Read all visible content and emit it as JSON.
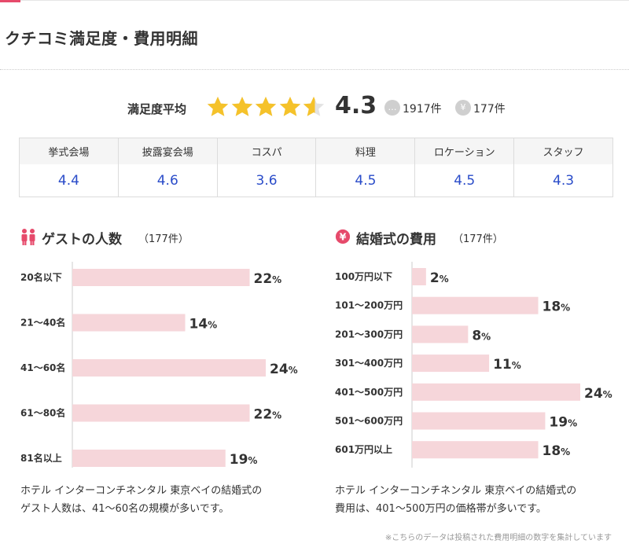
{
  "section_title": "クチコミ満足度・費用明細",
  "summary": {
    "label": "満足度平均",
    "score": "4.3",
    "rating": 4.3,
    "reviews_count": "1917件",
    "cost_count": "177件",
    "review_icon": "speech-bubble-icon",
    "cost_icon": "yen-icon",
    "star_color": "#f5c22a",
    "star_empty_color": "#e3e3e3"
  },
  "scores": [
    {
      "label": "挙式会場",
      "value": "4.4"
    },
    {
      "label": "披露宴会場",
      "value": "4.6"
    },
    {
      "label": "コスパ",
      "value": "3.6"
    },
    {
      "label": "料理",
      "value": "4.5"
    },
    {
      "label": "ロケーション",
      "value": "4.5"
    },
    {
      "label": "スタッフ",
      "value": "4.3"
    }
  ],
  "guest_chart": {
    "title": "ゲストの人数",
    "count": "（177件）",
    "icon": "people-icon",
    "note_lines": [
      "ホテル インターコンチネンタル 東京ベイの結婚式の",
      "ゲスト人数は、41～60名の規模が多いです。"
    ]
  },
  "cost_chart": {
    "title": "結婚式の費用",
    "count": "（177件）",
    "icon": "yen-circle-icon",
    "note_lines": [
      "ホテル インターコンチネンタル 東京ベイの結婚式の",
      "費用は、401～500万円の価格帯が多いです。"
    ]
  },
  "footnote": "※こちらのデータは投稿された費用明細の数字を集計しています",
  "colors": {
    "accent": "#e64a6b",
    "bar": "#f6d6da",
    "link_blue": "#2a4cc9"
  },
  "chart_data": [
    {
      "type": "bar",
      "orientation": "horizontal",
      "title": "ゲストの人数",
      "categories": [
        "20名以下",
        "21～40名",
        "41～60名",
        "61～80名",
        "81名以上"
      ],
      "values": [
        22,
        14,
        24,
        22,
        19
      ],
      "unit": "%",
      "xlim": [
        0,
        24
      ]
    },
    {
      "type": "bar",
      "orientation": "horizontal",
      "title": "結婚式の費用",
      "categories": [
        "100万円以下",
        "101～200万円",
        "201～300万円",
        "301～400万円",
        "401～500万円",
        "501～600万円",
        "601万円以上"
      ],
      "values": [
        2,
        18,
        8,
        11,
        24,
        19,
        18
      ],
      "unit": "%",
      "xlim": [
        0,
        24
      ]
    }
  ]
}
